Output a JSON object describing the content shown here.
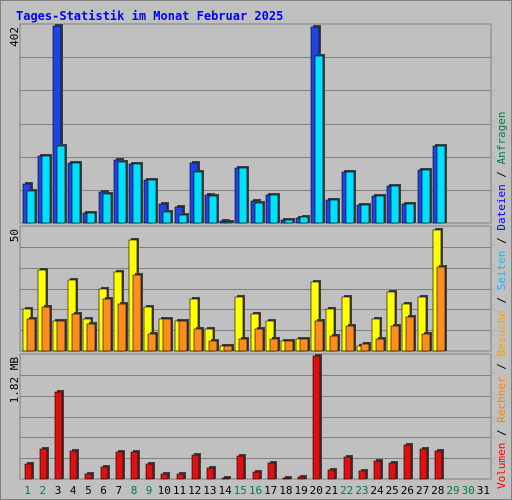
{
  "colors": {
    "background": "#C0C0C0",
    "plot_background": "#C0C0C0",
    "grid": "#808080",
    "title": "#0000FF",
    "legend_anfragen": "#008040",
    "legend_dateien": "#0000FF",
    "legend_seiten": "#00C0FF",
    "legend_besuche": "#FFA000",
    "legend_rechner": "#FF8000",
    "legend_volumen": "#FF0000",
    "hits": "#1F44E6",
    "files": "#00E0FF",
    "visits": "#FFFF00",
    "sites": "#FF8C1E",
    "kbytes": "#E01010",
    "weekend_label": "#008040",
    "weekday_label": "#000000"
  },
  "chart_data": {
    "type": "bar",
    "title": "Tages-Statistik im Monat Februar 2025",
    "days": [
      "1",
      "2",
      "3",
      "4",
      "5",
      "6",
      "7",
      "8",
      "9",
      "10",
      "11",
      "12",
      "13",
      "14",
      "15",
      "16",
      "17",
      "18",
      "19",
      "20",
      "21",
      "22",
      "23",
      "24",
      "25",
      "26",
      "27",
      "28",
      "29",
      "30",
      "31"
    ],
    "weekend_days": [
      "1",
      "2",
      "8",
      "9",
      "15",
      "16",
      "22",
      "23",
      "29",
      "30"
    ],
    "legend_right": [
      "Anfragen",
      "Dateien",
      "Seiten",
      "Besuche",
      "Rechner",
      "Volumen"
    ],
    "legend_separator": " / ",
    "panels": [
      {
        "name": "anfragen-dateien",
        "ymax_label": "402",
        "ymax": 402,
        "series": [
          {
            "name": "Anfragen",
            "key": "hits",
            "values": [
              80,
              136,
              402,
              122,
              20,
              63,
              128,
              120,
              88,
              38,
              32,
              122,
              57,
              4,
              113,
              45,
              58,
              7,
              10,
              400,
              47,
              105,
              36,
              55,
              76,
              39,
              108,
              158,
              0,
              0,
              0
            ]
          },
          {
            "name": "Dateien",
            "key": "files",
            "values": [
              65,
              136,
              158,
              122,
              20,
              60,
              125,
              120,
              88,
              22,
              17,
              105,
              55,
              3,
              112,
              40,
              58,
              7,
              12,
              340,
              47,
              105,
              36,
              55,
              76,
              39,
              108,
              158,
              0,
              0,
              0
            ]
          }
        ]
      },
      {
        "name": "besuche-rechner",
        "ymax_label": "50",
        "ymax": 50,
        "series": [
          {
            "name": "Seiten",
            "key": "visits",
            "values": [
              17,
              33,
              12,
              29,
              13,
              25,
              32,
              45,
              18,
              13,
              12,
              21,
              9,
              2,
              22,
              15,
              12,
              4,
              5,
              28,
              17,
              22,
              2,
              13,
              24,
              19,
              22,
              49,
              0,
              0,
              0
            ]
          },
          {
            "name": "Rechner",
            "key": "sites",
            "values": [
              13,
              18,
              12,
              15,
              11,
              21,
              19,
              31,
              7,
              13,
              12,
              9,
              4,
              2,
              5,
              9,
              5,
              4,
              5,
              12,
              6,
              10,
              3,
              5,
              10,
              14,
              7,
              34,
              0,
              0,
              0
            ]
          }
        ]
      },
      {
        "name": "volumen",
        "ymax_label": "1.82 MB",
        "ymax": 1.82,
        "series": [
          {
            "name": "Volumen",
            "key": "kbytes",
            "values": [
              0.22,
              0.45,
              1.28,
              0.42,
              0.08,
              0.18,
              0.4,
              0.4,
              0.22,
              0.08,
              0.08,
              0.35,
              0.17,
              0.02,
              0.34,
              0.1,
              0.24,
              0.02,
              0.03,
              1.82,
              0.13,
              0.32,
              0.12,
              0.27,
              0.24,
              0.5,
              0.44,
              0.42,
              0,
              0,
              0
            ]
          }
        ]
      }
    ]
  }
}
